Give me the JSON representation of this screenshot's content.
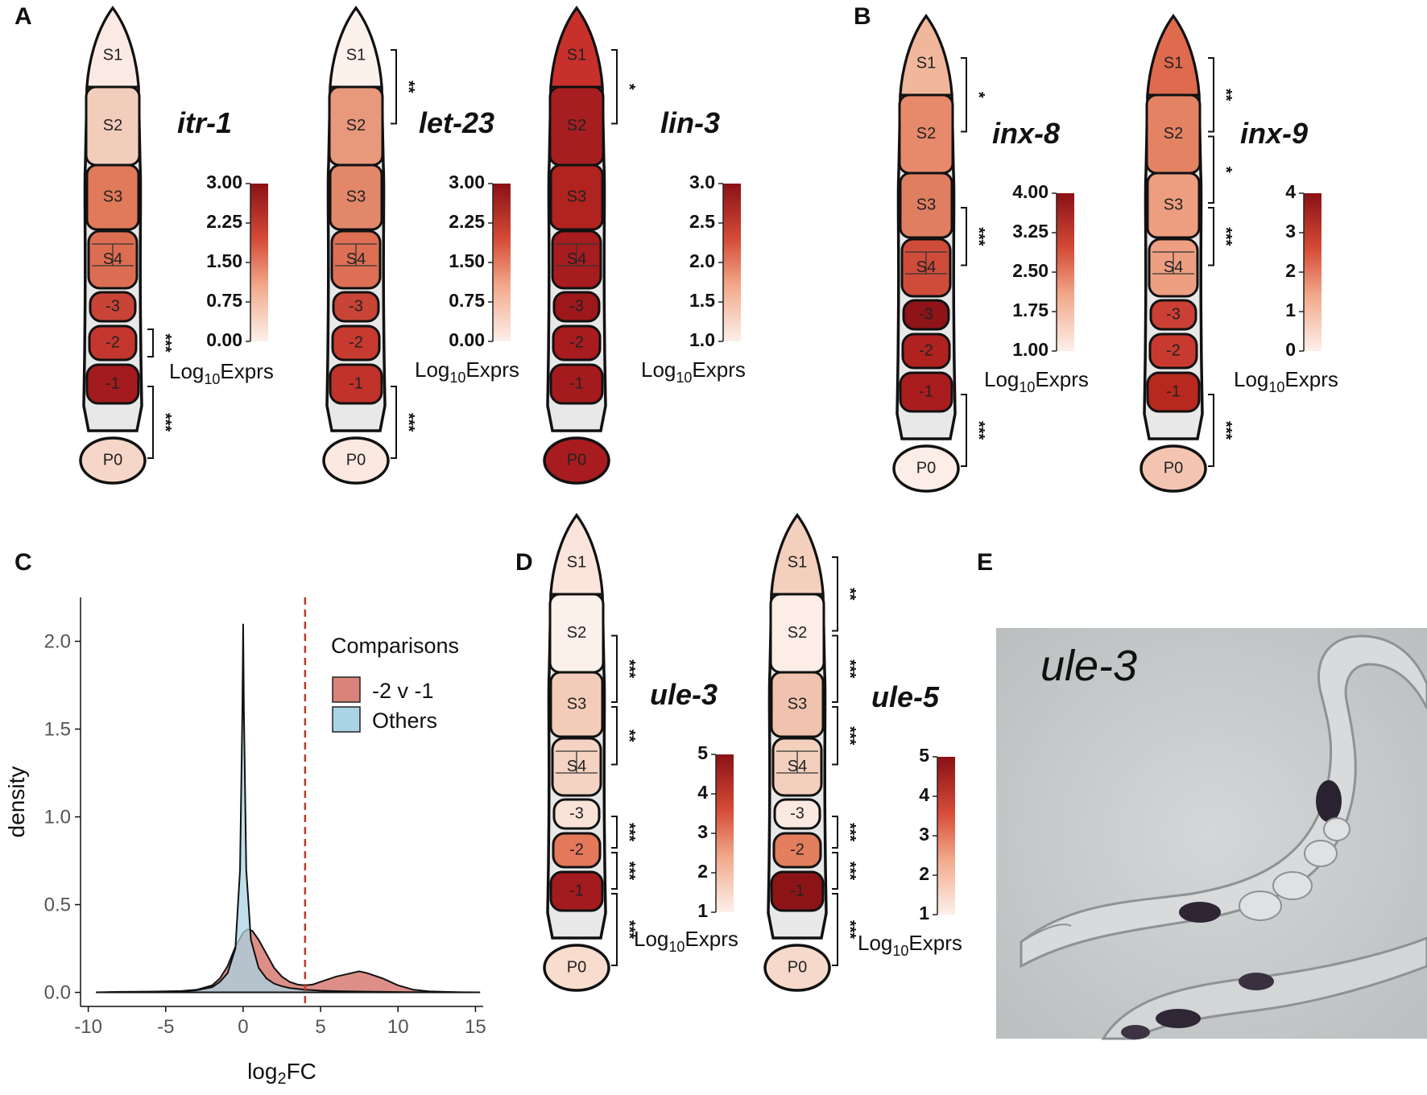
{
  "panels": {
    "A": "A",
    "B": "B",
    "C": "C",
    "D": "D",
    "E": "E"
  },
  "segment_labels": [
    "S1",
    "S2",
    "S3",
    "S4",
    "-3",
    "-2",
    "-1",
    "P0"
  ],
  "scale_title_main": "Log",
  "scale_title_sub": "10",
  "scale_title_tail": "Exprs",
  "gonads": [
    {
      "gene": "itr-1",
      "colors": {
        "S1": "#fbeae3",
        "S2": "#f3cdbb",
        "S3": "#e07a5a",
        "S4": "#db6e52",
        "m3": "#c84437",
        "m2": "#c3362d",
        "m1": "#a31b1e",
        "P0": "#f6d6c8"
      },
      "scale": [
        "3.00",
        "2.25",
        "1.50",
        "0.75",
        "0.00"
      ],
      "sig": [
        {
          "text": "***",
          "between": [
            "m2",
            "m2"
          ]
        },
        {
          "text": "***",
          "between": [
            "m1",
            "P0"
          ]
        }
      ]
    },
    {
      "gene": "let-23",
      "colors": {
        "S1": "#fdf1ec",
        "S2": "#e8987b",
        "S3": "#e3876a",
        "S4": "#dc6f54",
        "m3": "#c84437",
        "m2": "#c63a30",
        "m1": "#c0322a",
        "P0": "#fbe8e0"
      },
      "scale": [
        "3.00",
        "2.25",
        "1.50",
        "0.75",
        "0.00"
      ],
      "sig": [
        {
          "text": "**",
          "between": [
            "S1",
            "S2"
          ]
        },
        {
          "text": "***",
          "between": [
            "m1",
            "P0"
          ]
        }
      ]
    },
    {
      "gene": "lin-3",
      "colors": {
        "S1": "#c8302b",
        "S2": "#a71e20",
        "S3": "#b1231f",
        "S4": "#a71c1f",
        "m3": "#9c181b",
        "m2": "#a81b1f",
        "m1": "#a41a1d",
        "P0": "#a81c1f"
      },
      "scale": [
        "3.0",
        "2.5",
        "2.0",
        "1.5",
        "1.0"
      ],
      "sig": [
        {
          "text": "*",
          "between": [
            "S1",
            "S2"
          ]
        }
      ]
    },
    {
      "gene": "inx-8",
      "colors": {
        "S1": "#f0b79d",
        "S2": "#e68a6b",
        "S3": "#e07e62",
        "S4": "#cf4c3b",
        "m3": "#8e1418",
        "m2": "#b0221f",
        "m1": "#a91d1f",
        "P0": "#fcede6"
      },
      "scale": [
        "4.00",
        "3.25",
        "2.50",
        "1.75",
        "1.00"
      ],
      "sig": [
        {
          "text": "*",
          "between": [
            "S1",
            "S2"
          ]
        },
        {
          "text": "***",
          "between": [
            "S3",
            "S4"
          ]
        },
        {
          "text": "***",
          "between": [
            "m1",
            "P0"
          ]
        }
      ]
    },
    {
      "gene": "inx-9",
      "colors": {
        "S1": "#e06a4e",
        "S2": "#e48364",
        "S3": "#ed9e80",
        "S4": "#ee9f82",
        "m3": "#cb3f34",
        "m2": "#c83a30",
        "m1": "#b7281f",
        "P0": "#f3c5b1"
      },
      "scale": [
        "4",
        "3",
        "2",
        "1",
        "0"
      ],
      "sig": [
        {
          "text": "**",
          "between": [
            "S1",
            "S2"
          ]
        },
        {
          "text": "*",
          "between": [
            "S2",
            "S3"
          ]
        },
        {
          "text": "***",
          "between": [
            "S3",
            "S4"
          ]
        },
        {
          "text": "***",
          "between": [
            "m1",
            "P0"
          ]
        }
      ]
    },
    {
      "gene": "ule-3",
      "colors": {
        "S1": "#fae4db",
        "S2": "#fcf0ea",
        "S3": "#f3ccb9",
        "S4": "#f4d3c2",
        "m3": "#f9e2d7",
        "m2": "#e3785a",
        "m1": "#a31b1e",
        "P0": "#f8dccd"
      },
      "scale": [
        "5",
        "4",
        "3",
        "2",
        "1"
      ],
      "sig": [
        {
          "text": "***",
          "between": [
            "S2",
            "S3"
          ]
        },
        {
          "text": "**",
          "between": [
            "S3",
            "S4"
          ]
        },
        {
          "text": "***",
          "between": [
            "m3",
            "m2"
          ]
        },
        {
          "text": "***",
          "between": [
            "m2",
            "m1"
          ]
        },
        {
          "text": "***",
          "between": [
            "m1",
            "P0"
          ]
        }
      ]
    },
    {
      "gene": "ule-5",
      "colors": {
        "S1": "#f3cfbd",
        "S2": "#fcede6",
        "S3": "#f0c3ae",
        "S4": "#f3d0be",
        "m3": "#fae9e1",
        "m2": "#e37e5f",
        "m1": "#8c1417",
        "P0": "#f6d9ca"
      },
      "scale": [
        "5",
        "4",
        "3",
        "2",
        "1"
      ],
      "sig": [
        {
          "text": "**",
          "between": [
            "S1",
            "S2"
          ]
        },
        {
          "text": "***",
          "between": [
            "S2",
            "S3"
          ]
        },
        {
          "text": "***",
          "between": [
            "S3",
            "S4"
          ]
        },
        {
          "text": "***",
          "between": [
            "m3",
            "m2"
          ]
        },
        {
          "text": "***",
          "between": [
            "m2",
            "m1"
          ]
        },
        {
          "text": "***",
          "between": [
            "m1",
            "P0"
          ]
        }
      ]
    }
  ],
  "chart_data": {
    "type": "area",
    "xlabel_main": "log",
    "xlabel_sub": "2",
    "xlabel_tail": "FC",
    "ylabel": "density",
    "xlim": [
      -10.5,
      15.5
    ],
    "ylim": [
      -0.08,
      2.25
    ],
    "xticks": [
      -10,
      -5,
      0,
      5,
      10,
      15
    ],
    "yticks": [
      0.0,
      0.5,
      1.0,
      1.5,
      2.0
    ],
    "xtick_labels": [
      "-10",
      "-5",
      "0",
      "5",
      "10",
      "15"
    ],
    "ytick_labels": [
      "0.0",
      "0.5",
      "1.0",
      "1.5",
      "2.0"
    ],
    "vline_x": 4,
    "vline_color": "#c0392b",
    "legend_title": "Comparisons",
    "series": [
      {
        "name": "-2 v -1",
        "color": "#d9837a",
        "x": [
          -9.5,
          -8,
          -6,
          -4,
          -3,
          -2,
          -1.5,
          -1,
          -0.5,
          0,
          0.3,
          0.6,
          1,
          1.5,
          2,
          2.5,
          3,
          3.5,
          4,
          4.5,
          5,
          6,
          7,
          7.5,
          8,
          9,
          10,
          11,
          12,
          13,
          14,
          15.3
        ],
        "y": [
          0.0,
          0.003,
          0.004,
          0.008,
          0.015,
          0.04,
          0.08,
          0.15,
          0.26,
          0.34,
          0.36,
          0.35,
          0.3,
          0.22,
          0.14,
          0.09,
          0.06,
          0.045,
          0.04,
          0.045,
          0.06,
          0.09,
          0.11,
          0.12,
          0.11,
          0.08,
          0.04,
          0.015,
          0.006,
          0.003,
          0.001,
          0.0
        ]
      },
      {
        "name": "Others",
        "color": "#a9d4e3",
        "x": [
          -9.5,
          -8,
          -6,
          -4,
          -3,
          -2,
          -1.5,
          -1,
          -0.5,
          -0.2,
          -0.05,
          0,
          0.05,
          0.2,
          0.5,
          1,
          1.5,
          2,
          2.5,
          3,
          4,
          5,
          6,
          8,
          10,
          12,
          15.3
        ],
        "y": [
          0.0,
          0.002,
          0.003,
          0.006,
          0.012,
          0.03,
          0.06,
          0.11,
          0.25,
          0.7,
          1.6,
          2.1,
          1.6,
          0.7,
          0.3,
          0.14,
          0.08,
          0.05,
          0.035,
          0.025,
          0.015,
          0.01,
          0.007,
          0.004,
          0.002,
          0.001,
          0.0
        ]
      }
    ]
  },
  "photo": {
    "label": "ule-3",
    "background": "#c9cdce"
  }
}
